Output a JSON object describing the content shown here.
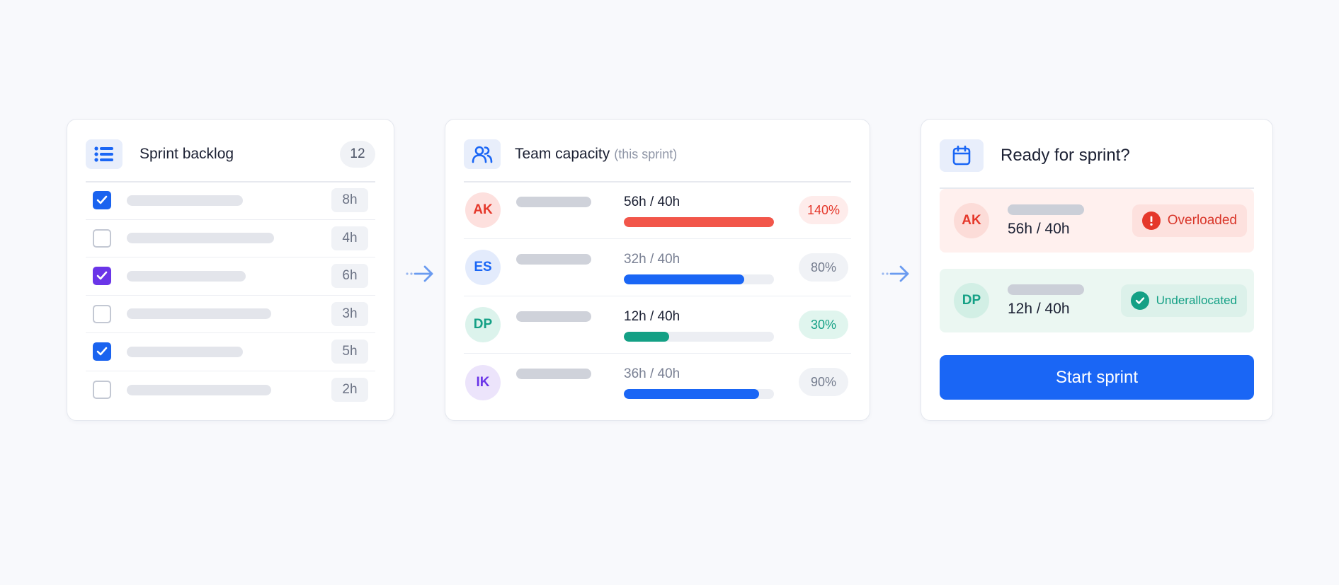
{
  "colors": {
    "accent": "#1a66f5",
    "danger": "#f2564a",
    "success": "#14a085",
    "purple": "#6a35e8"
  },
  "backlog": {
    "title": "Sprint backlog",
    "count": "12",
    "icon": "list-icon",
    "items": [
      {
        "checked": true,
        "check_color": "blue",
        "hours": "8h"
      },
      {
        "checked": false,
        "hours": "4h"
      },
      {
        "checked": true,
        "check_color": "purple",
        "hours": "6h"
      },
      {
        "checked": false,
        "hours": "3h"
      },
      {
        "checked": true,
        "check_color": "blue",
        "hours": "5h"
      },
      {
        "checked": false,
        "hours": "2h"
      }
    ]
  },
  "capacity": {
    "title": "Team capacity",
    "subtitle": "(this sprint)",
    "icon": "users-icon",
    "members": [
      {
        "initials": "AK",
        "hours": "56h / 40h",
        "percent": "140%",
        "load": 1.4,
        "status": "over"
      },
      {
        "initials": "ES",
        "hours": "32h / 40h",
        "percent": "80%",
        "load": 0.8,
        "status": "normal"
      },
      {
        "initials": "DP",
        "hours": "12h / 40h",
        "percent": "30%",
        "load": 0.3,
        "status": "under"
      },
      {
        "initials": "IK",
        "hours": "36h / 40h",
        "percent": "90%",
        "load": 0.9,
        "status": "normal"
      }
    ]
  },
  "ready": {
    "title": "Ready for sprint?",
    "icon": "calendar-icon",
    "alerts": [
      {
        "initials": "AK",
        "hours": "56h / 40h",
        "status_label": "Overloaded",
        "status_icon": "alert-icon"
      },
      {
        "initials": "DP",
        "hours": "12h / 40h",
        "status_label": "Underallocated",
        "status_icon": "check-circle-icon"
      }
    ],
    "button_label": "Start sprint"
  },
  "flow_arrows": [
    "arrow-right-icon",
    "arrow-right-icon"
  ]
}
